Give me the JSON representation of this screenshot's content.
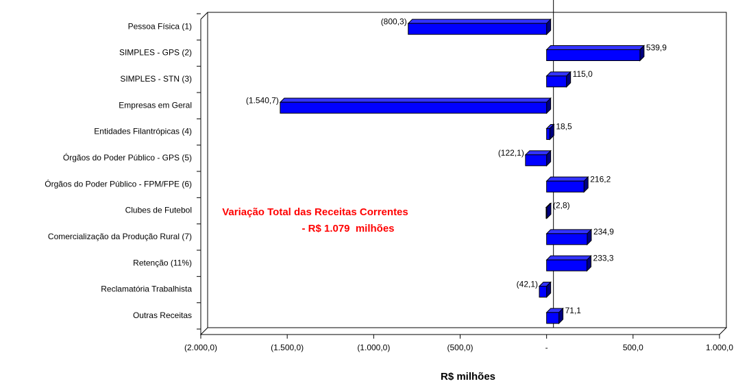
{
  "chart_data": {
    "type": "bar",
    "orientation": "horizontal",
    "categories": [
      "Pessoa Física (1)",
      "SIMPLES - GPS (2)",
      "SIMPLES - STN (3)",
      "Empresas em Geral",
      "Entidades Filantrópicas (4)",
      "Órgãos do Poder Público - GPS (5)",
      "Órgãos do Poder Público - FPM/FPE (6)",
      "Clubes de Futebol",
      "Comercialização da Produção Rural (7)",
      "Retenção (11%)",
      "Reclamatória Trabalhista",
      "Outras Receitas"
    ],
    "values": [
      -800.3,
      539.9,
      115.0,
      -1540.7,
      18.5,
      -122.1,
      216.2,
      -2.8,
      234.9,
      233.3,
      -42.1,
      71.1
    ],
    "value_labels": [
      "(800,3)",
      "539,9",
      "115,0",
      "(1.540,7)",
      "18,5",
      "(122,1)",
      "216,2",
      "(2,8)",
      "234,9",
      "233,3",
      "(42,1)",
      "71,1"
    ],
    "color": "#0000ff",
    "xlim": [
      -2000,
      1000
    ],
    "xticks": [
      {
        "value": -2000,
        "label": "(2.000,0)"
      },
      {
        "value": -1500,
        "label": "(1.500,0)"
      },
      {
        "value": -1000,
        "label": "(1.000,0)"
      },
      {
        "value": -500,
        "label": "(500,0)"
      },
      {
        "value": 0,
        "label": "-"
      },
      {
        "value": 500,
        "label": "500,0"
      },
      {
        "value": 1000,
        "label": "1.000,0"
      }
    ],
    "x_label": "R$ milhões",
    "annotation": [
      "Variação Total das Receitas Correntes",
      "- R$ 1.079  milhões"
    ]
  }
}
